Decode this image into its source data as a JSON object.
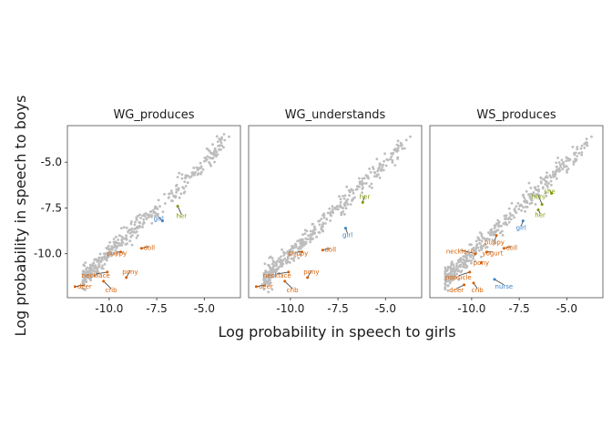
{
  "chart_data": {
    "type": "scatter",
    "xlabel": "Log probability in speech to girls",
    "ylabel": "Log probability in speech to boys",
    "xlim": [
      -12.2,
      -3.1
    ],
    "ylim": [
      -12.4,
      -3.0
    ],
    "x_ticks": [
      -10.0,
      -7.5,
      -5.0
    ],
    "x_tick_labels": [
      "-10.0",
      "-7.5",
      "-5.0"
    ],
    "y_ticks": [
      -10.0,
      -7.5,
      -5.0
    ],
    "y_tick_labels": [
      "-10.0",
      "-7.5",
      "-5.0"
    ],
    "grid": false,
    "point_color": "#bdbdbd",
    "label_colors": {
      "girl_words": "#d95f02",
      "boy_words": "#3b7fc4",
      "pronouns": "#7a9a01"
    },
    "panels": [
      {
        "title": "WG_produces",
        "labels": [
          {
            "word": "her",
            "x": -6.4,
            "y": -7.4,
            "group": "pronouns",
            "tx": -6.2,
            "ty": -7.95
          },
          {
            "word": "girl",
            "x": -7.2,
            "y": -8.2,
            "group": "boy_words",
            "tx": -7.4,
            "ty": -8.1
          },
          {
            "word": "doll",
            "x": -8.3,
            "y": -9.7,
            "group": "girl_words",
            "tx": -7.9,
            "ty": -9.7
          },
          {
            "word": "puppy",
            "x": -9.4,
            "y": -9.9,
            "group": "girl_words",
            "tx": -9.6,
            "ty": -10.0
          },
          {
            "word": "pony",
            "x": -9.1,
            "y": -11.3,
            "group": "girl_words",
            "tx": -8.9,
            "ty": -11.0
          },
          {
            "word": "necklace",
            "x": -10.1,
            "y": -11.0,
            "group": "girl_words",
            "tx": -10.7,
            "ty": -11.2
          },
          {
            "word": "crib",
            "x": -10.3,
            "y": -11.5,
            "group": "girl_words",
            "tx": -9.9,
            "ty": -12.0
          },
          {
            "word": "deer",
            "x": -11.8,
            "y": -11.8,
            "group": "girl_words",
            "tx": -11.3,
            "ty": -11.8
          }
        ]
      },
      {
        "title": "WG_understands",
        "labels": [
          {
            "word": "her",
            "x": -6.2,
            "y": -7.2,
            "group": "pronouns",
            "tx": -6.1,
            "ty": -6.9
          },
          {
            "word": "girl",
            "x": -7.1,
            "y": -8.6,
            "group": "boy_words",
            "tx": -7.0,
            "ty": -9.0
          },
          {
            "word": "doll",
            "x": -8.3,
            "y": -9.8,
            "group": "girl_words",
            "tx": -7.9,
            "ty": -9.8
          },
          {
            "word": "puppy",
            "x": -9.4,
            "y": -9.9,
            "group": "girl_words",
            "tx": -9.6,
            "ty": -10.0
          },
          {
            "word": "pony",
            "x": -9.1,
            "y": -11.3,
            "group": "girl_words",
            "tx": -8.9,
            "ty": -11.0
          },
          {
            "word": "necklace",
            "x": -10.1,
            "y": -11.0,
            "group": "girl_words",
            "tx": -10.7,
            "ty": -11.2
          },
          {
            "word": "crib",
            "x": -10.3,
            "y": -11.5,
            "group": "girl_words",
            "tx": -9.9,
            "ty": -12.0
          },
          {
            "word": "deer",
            "x": -11.8,
            "y": -11.8,
            "group": "girl_words",
            "tx": -11.3,
            "ty": -11.8
          }
        ]
      },
      {
        "title": "WS_produces",
        "labels": [
          {
            "word": "she",
            "x": -5.8,
            "y": -6.7,
            "group": "pronouns",
            "tx": -5.9,
            "ty": -6.6
          },
          {
            "word": "hers",
            "x": -6.3,
            "y": -7.3,
            "group": "pronouns",
            "tx": -6.5,
            "ty": -6.9
          },
          {
            "word": "her",
            "x": -6.5,
            "y": -7.6,
            "group": "pronouns",
            "tx": -6.4,
            "ty": -7.9
          },
          {
            "word": "girl",
            "x": -7.3,
            "y": -8.2,
            "group": "boy_words",
            "tx": -7.4,
            "ty": -8.6
          },
          {
            "word": "doll",
            "x": -8.3,
            "y": -9.7,
            "group": "girl_words",
            "tx": -7.9,
            "ty": -9.7
          },
          {
            "word": "puppy",
            "x": -8.7,
            "y": -9.0,
            "group": "girl_words",
            "tx": -8.8,
            "ty": -9.4
          },
          {
            "word": "yogurt",
            "x": -9.2,
            "y": -9.9,
            "group": "girl_words",
            "tx": -8.9,
            "ty": -10.0
          },
          {
            "word": "necklace",
            "x": -9.8,
            "y": -10.0,
            "group": "girl_words",
            "tx": -10.6,
            "ty": -9.9
          },
          {
            "word": "pony",
            "x": -9.5,
            "y": -10.5,
            "group": "girl_words",
            "tx": -9.5,
            "ty": -10.5
          },
          {
            "word": "popsicle",
            "x": -10.1,
            "y": -11.0,
            "group": "girl_words",
            "tx": -10.7,
            "ty": -11.3
          },
          {
            "word": "nurse",
            "x": -8.8,
            "y": -11.4,
            "group": "boy_words",
            "tx": -8.3,
            "ty": -11.8
          },
          {
            "word": "deer",
            "x": -10.4,
            "y": -11.7,
            "group": "girl_words",
            "tx": -10.8,
            "ty": -12.0
          },
          {
            "word": "crib",
            "x": -9.9,
            "y": -11.6,
            "group": "girl_words",
            "tx": -9.7,
            "ty": -12.0
          }
        ]
      }
    ]
  }
}
